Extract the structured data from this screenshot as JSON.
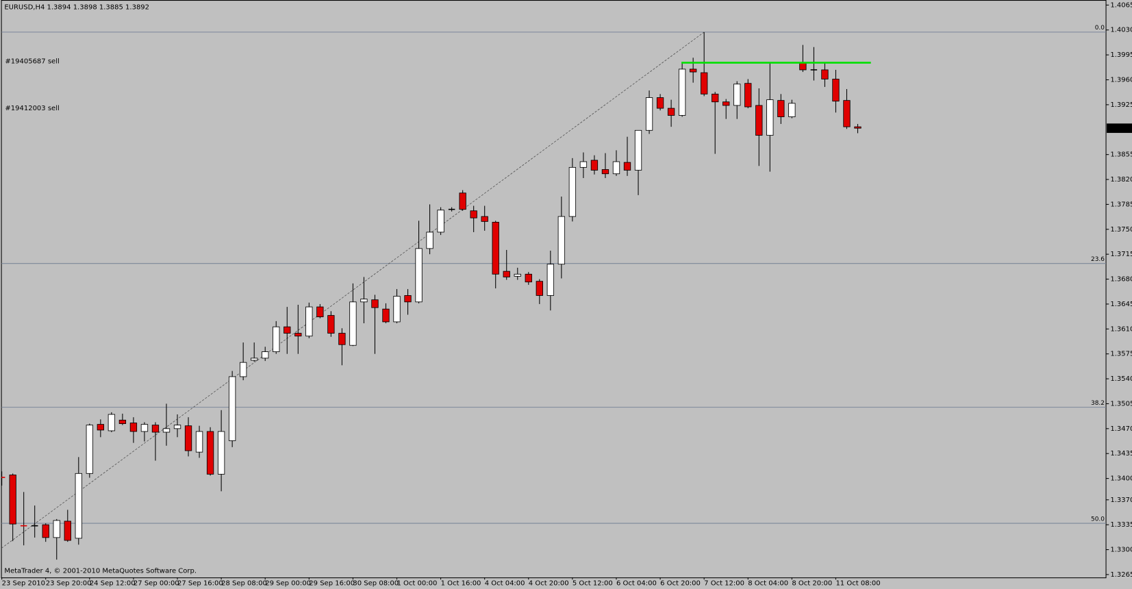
{
  "header": "EURUSD,H4  1.3894 1.3898 1.3885 1.3892",
  "footer": "MetaTrader 4, © 2001-2010 MetaQuotes Software Corp.",
  "orders": [
    "#19405687 sell",
    "#19412003 sell"
  ],
  "chart_data": {
    "type": "candlestick",
    "categories": [
      "23 Sep 2010",
      null,
      null,
      null,
      "23 Sep 20:00",
      null,
      null,
      null,
      "24 Sep 12:00",
      null,
      null,
      null,
      "27 Sep 00:00",
      null,
      null,
      null,
      "27 Sep 16:00",
      null,
      null,
      null,
      "28 Sep 08:00",
      null,
      null,
      null,
      "29 Sep 00:00",
      null,
      null,
      null,
      "29 Sep 16:00",
      null,
      null,
      null,
      "30 Sep 08:00",
      null,
      null,
      null,
      "1 Oct 00:00",
      null,
      null,
      null,
      "1 Oct 16:00",
      null,
      null,
      null,
      "4 Oct 04:00",
      null,
      null,
      null,
      "4 Oct 20:00",
      null,
      null,
      null,
      "5 Oct 12:00",
      null,
      null,
      null,
      "6 Oct 04:00",
      null,
      null,
      null,
      "6 Oct 20:00",
      null,
      null,
      null,
      "7 Oct 12:00",
      null,
      null,
      null,
      "8 Oct 04:00",
      null,
      null,
      null,
      "8 Oct 20:00",
      null,
      null,
      null,
      "11 Oct 08:00",
      null,
      null
    ],
    "open": [
      1.3402,
      1.3405,
      1.3334,
      1.3333,
      1.3335,
      1.3317,
      1.334,
      1.3316,
      1.3407,
      1.3476,
      1.3467,
      1.3482,
      1.3478,
      1.3466,
      1.3475,
      1.3465,
      1.347,
      1.3474,
      1.3437,
      1.3466,
      1.3406,
      1.3453,
      1.3543,
      1.3566,
      1.3569,
      1.3578,
      1.3613,
      1.3604,
      1.36,
      1.3641,
      1.3629,
      1.3604,
      1.3587,
      1.3648,
      1.3651,
      1.3638,
      1.362,
      1.3657,
      1.3648,
      1.3723,
      1.3746,
      1.3778,
      1.3801,
      1.3776,
      1.3768,
      1.376,
      1.3691,
      1.3684,
      1.3687,
      1.3677,
      1.3657,
      1.3701,
      1.3768,
      1.3837,
      1.3847,
      1.3834,
      1.3828,
      1.3844,
      1.3833,
      1.3889,
      1.3935,
      1.392,
      1.391,
      1.3975,
      1.397,
      1.394,
      1.3929,
      1.3924,
      1.3955,
      1.3924,
      1.3882,
      1.3931,
      1.3908,
      1.3984,
      1.3974,
      1.3974,
      1.3961,
      1.3931,
      1.3894
    ],
    "high": [
      1.341,
      1.3407,
      1.3381,
      1.3362,
      1.3337,
      1.3343,
      1.3356,
      1.343,
      1.3477,
      1.3483,
      1.3493,
      1.3491,
      1.3486,
      1.3479,
      1.3479,
      1.3505,
      1.349,
      1.3486,
      1.3474,
      1.3472,
      1.3496,
      1.3551,
      1.3591,
      1.3591,
      1.3585,
      1.3621,
      1.3641,
      1.3644,
      1.3647,
      1.3645,
      1.3635,
      1.3611,
      1.3674,
      1.3683,
      1.3658,
      1.3646,
      1.3666,
      1.3666,
      1.3762,
      1.3785,
      1.3781,
      1.3781,
      1.3805,
      1.3783,
      1.3783,
      1.3762,
      1.3721,
      1.3696,
      1.369,
      1.368,
      1.372,
      1.3796,
      1.385,
      1.3858,
      1.3854,
      1.3857,
      1.3861,
      1.388,
      1.3889,
      1.3945,
      1.394,
      1.3932,
      1.3983,
      1.3991,
      1.4027,
      1.3943,
      1.3933,
      1.3958,
      1.3961,
      1.3948,
      1.3983,
      1.394,
      1.3932,
      1.4009,
      1.4006,
      1.3983,
      1.3974,
      1.3947,
      1.3898
    ],
    "low": [
      1.339,
      1.3312,
      1.3306,
      1.3317,
      1.3311,
      1.3286,
      1.3311,
      1.3307,
      1.3401,
      1.3458,
      1.3465,
      1.3475,
      1.345,
      1.3452,
      1.3425,
      1.3446,
      1.3458,
      1.3431,
      1.3429,
      1.3404,
      1.3382,
      1.3444,
      1.3538,
      1.3564,
      1.3565,
      1.3575,
      1.3575,
      1.3575,
      1.3597,
      1.3625,
      1.3599,
      1.3559,
      1.3586,
      1.3618,
      1.3575,
      1.3618,
      1.3618,
      1.363,
      1.3646,
      1.3715,
      1.3742,
      1.3775,
      1.3776,
      1.3746,
      1.3748,
      1.3667,
      1.3679,
      1.3679,
      1.3672,
      1.3645,
      1.3636,
      1.3681,
      1.3761,
      1.3822,
      1.3827,
      1.3822,
      1.3825,
      1.3825,
      1.3798,
      1.3884,
      1.3917,
      1.3894,
      1.3908,
      1.3956,
      1.3937,
      1.3856,
      1.3905,
      1.3905,
      1.392,
      1.3839,
      1.3831,
      1.3898,
      1.3906,
      1.3971,
      1.3959,
      1.395,
      1.3914,
      1.3891,
      1.3885
    ],
    "close": [
      1.3401,
      1.3336,
      1.3333,
      1.3334,
      1.3317,
      1.3341,
      1.3313,
      1.3407,
      1.3475,
      1.3468,
      1.349,
      1.3477,
      1.3466,
      1.3476,
      1.3465,
      1.347,
      1.3475,
      1.3439,
      1.3466,
      1.3406,
      1.3466,
      1.3543,
      1.3563,
      1.3569,
      1.3578,
      1.3613,
      1.3604,
      1.36,
      1.3641,
      1.3627,
      1.3604,
      1.3588,
      1.3648,
      1.3652,
      1.364,
      1.362,
      1.3656,
      1.3648,
      1.3723,
      1.3746,
      1.3777,
      1.3778,
      1.3778,
      1.3766,
      1.3761,
      1.3687,
      1.3683,
      1.3687,
      1.3676,
      1.3657,
      1.3701,
      1.3768,
      1.3837,
      1.3845,
      1.3833,
      1.3828,
      1.3845,
      1.3833,
      1.3889,
      1.3935,
      1.392,
      1.391,
      1.3975,
      1.3971,
      1.394,
      1.3929,
      1.3924,
      1.3954,
      1.3922,
      1.3882,
      1.3932,
      1.3908,
      1.3927,
      1.3974,
      1.3974,
      1.3961,
      1.393,
      1.3894,
      1.3892
    ],
    "up_color": "#ffffff",
    "down_color": "#e00000",
    "ylim": [
      1.3265,
      1.4065
    ],
    "yticks": [
      1.4065,
      {
        "value": 1.403,
        "label": "1.4030"
      },
      1.3995,
      {
        "value": 1.396,
        "label": "1.3960"
      },
      1.3925,
      1.3855,
      {
        "value": 1.382,
        "label": "1.3820"
      },
      1.3785,
      {
        "value": 1.375,
        "label": "1.3750"
      },
      1.3715,
      {
        "value": 1.368,
        "label": "1.3680"
      },
      1.3645,
      {
        "value": 1.361,
        "label": "1.3610"
      },
      1.3575,
      {
        "value": 1.354,
        "label": "1.3540"
      },
      1.3505,
      {
        "value": 1.347,
        "label": "1.3470"
      },
      1.3435,
      {
        "value": 1.34,
        "label": "1.3400"
      },
      {
        "value": 1.337,
        "label": "1.3370"
      },
      1.3335,
      {
        "value": 1.33,
        "label": "1.3300"
      },
      1.3265
    ],
    "current_price": 1.3892,
    "fib_levels": [
      {
        "label": "0.0",
        "value": 1.4027
      },
      {
        "label": "23.6",
        "value": 1.3702
      },
      {
        "label": "38.2",
        "value": 1.35
      },
      {
        "label": "50.0",
        "value": 1.3337
      }
    ],
    "resistance": {
      "value": 1.3984,
      "color": "#00e000"
    },
    "trendline": {
      "from": 1.3302,
      "to": 1.4027
    }
  }
}
